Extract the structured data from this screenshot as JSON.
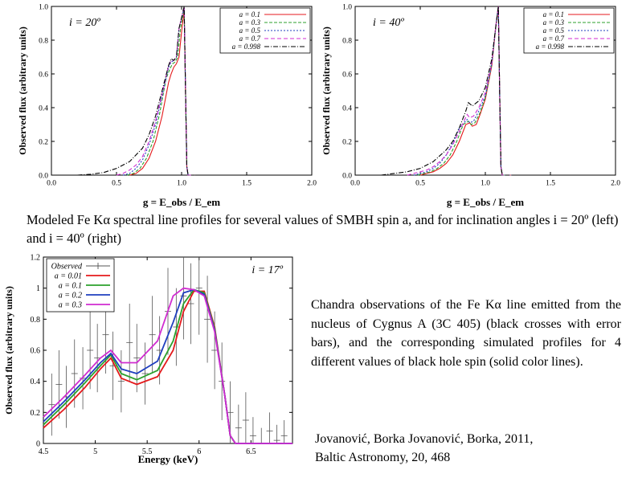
{
  "captions": {
    "top": "Modeled Fe Kα spectral line profiles for several values of SMBH spin a, and for inclination angles i = 20º (left) and i = 40º (right)",
    "right": "Chandra observations of the Fe Kα line emitted from the nucleus of Cygnus A (3C 405) (black crosses with error bars), and the corresponding simulated profiles for 4 different values of black hole spin (solid color lines).",
    "citation_line1": "Jovanović, Borka Jovanović, Borka, 2011,",
    "citation_line2": "Baltic Astronomy, 20, 468"
  },
  "chart_data": [
    {
      "id": "left",
      "type": "line",
      "annotation": "i = 20º",
      "xlabel": "g = E_obs / E_em",
      "ylabel": "Observed flux (arbitrary units)",
      "xlim": [
        0,
        2
      ],
      "ylim": [
        0,
        1
      ],
      "xticks": [
        "0.0",
        "0.5",
        "1.0",
        "1.5",
        "2.0"
      ],
      "yticks": [
        "0.0",
        "0.2",
        "0.4",
        "0.6",
        "0.8",
        "1.0"
      ],
      "grid": false,
      "legend_position": "top-right",
      "series": [
        {
          "name": "a = 0.1",
          "color": "#e41a1c",
          "dash": "",
          "x": [
            0.6,
            0.65,
            0.7,
            0.75,
            0.8,
            0.85,
            0.9,
            0.92,
            0.94,
            0.96,
            0.98,
            1.0,
            1.02,
            1.03,
            1.04,
            1.05,
            1.1
          ],
          "y": [
            0,
            0.01,
            0.04,
            0.1,
            0.2,
            0.35,
            0.55,
            0.6,
            0.64,
            0.66,
            0.7,
            0.85,
            0.98,
            0.5,
            0.05,
            0,
            0
          ]
        },
        {
          "name": "a = 0.3",
          "color": "#2ca02c",
          "dash": "4,2",
          "x": [
            0.58,
            0.63,
            0.68,
            0.73,
            0.78,
            0.83,
            0.88,
            0.91,
            0.93,
            0.95,
            0.97,
            0.99,
            1.02,
            1.03,
            1.04,
            1.05,
            1.1
          ],
          "y": [
            0,
            0.01,
            0.04,
            0.1,
            0.2,
            0.36,
            0.57,
            0.63,
            0.66,
            0.67,
            0.7,
            0.86,
            0.99,
            0.5,
            0.05,
            0,
            0
          ]
        },
        {
          "name": "a = 0.5",
          "color": "#1f3fbf",
          "dash": "2,2",
          "x": [
            0.55,
            0.6,
            0.65,
            0.7,
            0.75,
            0.8,
            0.85,
            0.9,
            0.92,
            0.94,
            0.96,
            0.98,
            1.02,
            1.03,
            1.04,
            1.05,
            1.1
          ],
          "y": [
            0,
            0.01,
            0.04,
            0.09,
            0.18,
            0.3,
            0.47,
            0.64,
            0.67,
            0.68,
            0.7,
            0.87,
            0.99,
            0.5,
            0.05,
            0,
            0
          ]
        },
        {
          "name": "a = 0.7",
          "color": "#d02cd0",
          "dash": "5,3",
          "x": [
            0.5,
            0.55,
            0.6,
            0.65,
            0.7,
            0.75,
            0.8,
            0.85,
            0.9,
            0.92,
            0.94,
            0.96,
            0.98,
            1.02,
            1.03,
            1.04,
            1.05,
            1.1
          ],
          "y": [
            0,
            0.01,
            0.03,
            0.06,
            0.11,
            0.2,
            0.32,
            0.48,
            0.65,
            0.68,
            0.68,
            0.7,
            0.87,
            1.0,
            0.5,
            0.05,
            0,
            0
          ]
        },
        {
          "name": "a = 0.998",
          "color": "#000000",
          "dash": "6,2,1,2",
          "x": [
            0.2,
            0.3,
            0.4,
            0.5,
            0.6,
            0.7,
            0.75,
            0.8,
            0.85,
            0.9,
            0.92,
            0.94,
            0.96,
            0.98,
            1.02,
            1.03,
            1.04,
            1.05,
            1.1
          ],
          "y": [
            0,
            0.005,
            0.015,
            0.04,
            0.08,
            0.16,
            0.24,
            0.35,
            0.5,
            0.65,
            0.69,
            0.68,
            0.7,
            0.87,
            1.0,
            0.5,
            0.05,
            0,
            0
          ]
        }
      ]
    },
    {
      "id": "right",
      "type": "line",
      "annotation": "i = 40º",
      "xlabel": "g = E_obs / E_em",
      "ylabel": "Observed flux (arbitrary units)",
      "xlim": [
        0,
        2
      ],
      "ylim": [
        0,
        1
      ],
      "xticks": [
        "0.0",
        "0.5",
        "1.0",
        "1.5",
        "2.0"
      ],
      "yticks": [
        "0.0",
        "0.2",
        "0.4",
        "0.6",
        "0.8",
        "1.0"
      ],
      "grid": false,
      "legend_position": "top-right",
      "series": [
        {
          "name": "a = 0.1",
          "color": "#e41a1c",
          "dash": "",
          "x": [
            0.5,
            0.55,
            0.6,
            0.65,
            0.7,
            0.75,
            0.8,
            0.85,
            0.88,
            0.9,
            0.93,
            0.96,
            1.0,
            1.05,
            1.08,
            1.1,
            1.11,
            1.12,
            1.13,
            1.2
          ],
          "y": [
            0,
            0.01,
            0.02,
            0.04,
            0.07,
            0.12,
            0.2,
            0.3,
            0.31,
            0.29,
            0.3,
            0.36,
            0.45,
            0.65,
            0.88,
            1.0,
            0.5,
            0.05,
            0,
            0
          ]
        },
        {
          "name": "a = 0.3",
          "color": "#2ca02c",
          "dash": "4,2",
          "x": [
            0.48,
            0.53,
            0.58,
            0.63,
            0.68,
            0.73,
            0.78,
            0.83,
            0.87,
            0.89,
            0.92,
            0.96,
            1.0,
            1.05,
            1.08,
            1.1,
            1.11,
            1.12,
            1.13,
            1.2
          ],
          "y": [
            0,
            0.01,
            0.02,
            0.04,
            0.07,
            0.12,
            0.2,
            0.3,
            0.32,
            0.3,
            0.31,
            0.37,
            0.46,
            0.66,
            0.88,
            1.0,
            0.5,
            0.05,
            0,
            0
          ]
        },
        {
          "name": "a = 0.5",
          "color": "#1f3fbf",
          "dash": "2,2",
          "x": [
            0.45,
            0.5,
            0.55,
            0.6,
            0.65,
            0.7,
            0.75,
            0.8,
            0.86,
            0.88,
            0.91,
            0.95,
            1.0,
            1.05,
            1.08,
            1.1,
            1.11,
            1.12,
            1.13,
            1.2
          ],
          "y": [
            0,
            0.01,
            0.02,
            0.04,
            0.07,
            0.12,
            0.19,
            0.28,
            0.33,
            0.31,
            0.32,
            0.38,
            0.47,
            0.66,
            0.88,
            1.0,
            0.5,
            0.05,
            0,
            0
          ]
        },
        {
          "name": "a = 0.7",
          "color": "#d02cd0",
          "dash": "5,3",
          "x": [
            0.4,
            0.45,
            0.5,
            0.55,
            0.6,
            0.65,
            0.7,
            0.75,
            0.8,
            0.86,
            0.88,
            0.91,
            0.95,
            1.0,
            1.05,
            1.08,
            1.1,
            1.11,
            1.12,
            1.13,
            1.2
          ],
          "y": [
            0,
            0.01,
            0.02,
            0.03,
            0.05,
            0.08,
            0.12,
            0.18,
            0.26,
            0.36,
            0.34,
            0.35,
            0.4,
            0.49,
            0.67,
            0.88,
            1.0,
            0.5,
            0.05,
            0,
            0
          ]
        },
        {
          "name": "a = 0.998",
          "color": "#000000",
          "dash": "6,2,1,2",
          "x": [
            0.2,
            0.3,
            0.4,
            0.5,
            0.6,
            0.7,
            0.75,
            0.8,
            0.85,
            0.87,
            0.9,
            0.95,
            1.0,
            1.05,
            1.08,
            1.1,
            1.11,
            1.12,
            1.13,
            1.2
          ],
          "y": [
            0,
            0.01,
            0.02,
            0.04,
            0.08,
            0.15,
            0.2,
            0.28,
            0.38,
            0.43,
            0.41,
            0.44,
            0.52,
            0.69,
            0.88,
            1.0,
            0.5,
            0.05,
            0,
            0
          ]
        }
      ]
    },
    {
      "id": "bottom",
      "type": "line",
      "annotation": "i = 17º",
      "xlabel": "Energy (keV)",
      "ylabel": "Observed flux (arbitrary units)",
      "xlim": [
        4.5,
        6.9
      ],
      "ylim": [
        0,
        1.2
      ],
      "xticks": [
        "4.5",
        "5",
        "5.5",
        "6",
        "6.5"
      ],
      "yticks": [
        "0",
        "0.2",
        "0.4",
        "0.6",
        "0.8",
        "1",
        "1.2"
      ],
      "grid": false,
      "legend_position": "top-left",
      "observed": {
        "name": "Observed",
        "x": [
          4.58,
          4.65,
          4.72,
          4.8,
          4.88,
          4.95,
          5.02,
          5.1,
          5.17,
          5.25,
          5.33,
          5.4,
          5.48,
          5.55,
          5.62,
          5.7,
          5.78,
          5.85,
          5.92,
          6.0,
          6.08,
          6.15,
          6.22,
          6.3,
          6.38,
          6.45,
          6.52,
          6.6,
          6.68,
          6.75,
          6.82
        ],
        "y": [
          0.25,
          0.38,
          0.3,
          0.45,
          0.42,
          0.6,
          0.55,
          0.7,
          0.5,
          0.4,
          0.65,
          0.55,
          0.45,
          0.7,
          0.6,
          0.85,
          0.75,
          0.95,
          0.9,
          1.0,
          0.8,
          0.6,
          0.4,
          0.2,
          0.1,
          0.15,
          0.05,
          0.0,
          0.08,
          0.02,
          0.05
        ],
        "err": [
          0.2,
          0.22,
          0.2,
          0.22,
          0.2,
          0.25,
          0.22,
          0.25,
          0.22,
          0.2,
          0.25,
          0.22,
          0.2,
          0.25,
          0.22,
          0.28,
          0.25,
          0.28,
          0.26,
          0.3,
          0.28,
          0.25,
          0.25,
          0.2,
          0.15,
          0.18,
          0.12,
          0.1,
          0.12,
          0.1,
          0.1
        ]
      },
      "series": [
        {
          "name": "a = 0.01",
          "color": "#e41a1c",
          "x": [
            4.5,
            4.7,
            4.9,
            5.05,
            5.15,
            5.25,
            5.4,
            5.6,
            5.75,
            5.85,
            5.95,
            6.05,
            6.15,
            6.25,
            6.3,
            6.35,
            6.6,
            6.9
          ],
          "y": [
            0.1,
            0.22,
            0.36,
            0.48,
            0.55,
            0.42,
            0.38,
            0.43,
            0.6,
            0.85,
            0.98,
            0.98,
            0.75,
            0.3,
            0.05,
            0.0,
            0.0,
            0.0
          ]
        },
        {
          "name": "a = 0.1",
          "color": "#2ca02c",
          "x": [
            4.5,
            4.7,
            4.9,
            5.05,
            5.15,
            5.25,
            5.4,
            5.6,
            5.75,
            5.85,
            5.95,
            6.05,
            6.15,
            6.25,
            6.3,
            6.35,
            6.6,
            6.9
          ],
          "y": [
            0.12,
            0.25,
            0.39,
            0.5,
            0.57,
            0.45,
            0.41,
            0.47,
            0.66,
            0.9,
            0.99,
            0.97,
            0.74,
            0.3,
            0.05,
            0.0,
            0.0,
            0.0
          ]
        },
        {
          "name": "a = 0.2",
          "color": "#1f3fbf",
          "x": [
            4.5,
            4.7,
            4.9,
            5.05,
            5.15,
            5.25,
            5.4,
            5.6,
            5.75,
            5.85,
            5.95,
            6.05,
            6.15,
            6.25,
            6.3,
            6.35,
            6.6,
            6.9
          ],
          "y": [
            0.14,
            0.27,
            0.41,
            0.52,
            0.58,
            0.48,
            0.45,
            0.53,
            0.78,
            0.97,
            0.99,
            0.96,
            0.73,
            0.3,
            0.05,
            0.0,
            0.0,
            0.0
          ]
        },
        {
          "name": "a = 0.3",
          "color": "#d02cd0",
          "x": [
            4.5,
            4.7,
            4.9,
            5.05,
            5.15,
            5.25,
            5.4,
            5.6,
            5.75,
            5.85,
            5.95,
            6.05,
            6.15,
            6.25,
            6.3,
            6.35,
            6.6,
            6.9
          ],
          "y": [
            0.17,
            0.3,
            0.44,
            0.55,
            0.6,
            0.52,
            0.52,
            0.66,
            0.95,
            1.0,
            0.99,
            0.95,
            0.72,
            0.3,
            0.05,
            0.0,
            0.0,
            0.0
          ]
        }
      ]
    }
  ]
}
